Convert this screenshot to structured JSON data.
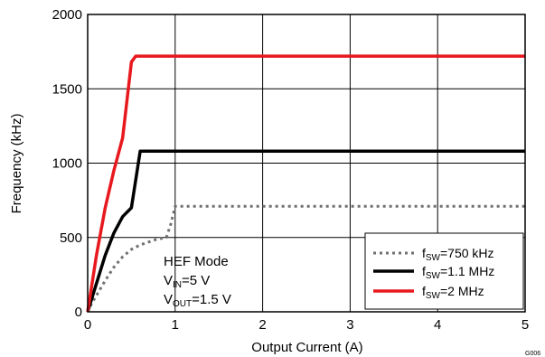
{
  "chart_data": {
    "type": "line",
    "xlabel": "Output Current (A)",
    "ylabel": "Frequency (kHz)",
    "xlim": [
      0,
      5
    ],
    "ylim": [
      0,
      2000
    ],
    "x_ticks": [
      "0",
      "1",
      "2",
      "3",
      "4",
      "5"
    ],
    "y_ticks": [
      "0",
      "500",
      "1000",
      "1500",
      "2000"
    ],
    "grid": true,
    "legend_position": "bottom-right",
    "annotation": {
      "line1": "HEF Mode",
      "line2_prefix": "V",
      "line2_sub": "IN",
      "line2_suffix": "=5 V",
      "line3_prefix": "V",
      "line3_sub": "OUT",
      "line3_suffix": "=1.5 V"
    },
    "corner_id": "G006",
    "series": [
      {
        "label_prefix": "f",
        "label_sub": "SW",
        "label_suffix": "=750 kHz",
        "color": "#707070",
        "style": "dotted",
        "x": [
          0,
          0.05,
          0.1,
          0.2,
          0.3,
          0.4,
          0.5,
          0.6,
          0.7,
          0.8,
          0.9,
          0.95,
          1.0,
          5.0
        ],
        "y": [
          0,
          60,
          110,
          210,
          300,
          370,
          420,
          450,
          470,
          490,
          500,
          590,
          710,
          710
        ]
      },
      {
        "label_prefix": "f",
        "label_sub": "SW",
        "label_suffix": "=1.1 MHz",
        "color": "#000000",
        "style": "solid",
        "x": [
          0,
          0.1,
          0.2,
          0.3,
          0.4,
          0.5,
          0.6,
          5.0
        ],
        "y": [
          0,
          190,
          380,
          530,
          640,
          700,
          1080,
          1080
        ]
      },
      {
        "label_prefix": "f",
        "label_sub": "SW",
        "label_suffix": "=2 MHz",
        "color": "#e8191e",
        "style": "solid",
        "x": [
          0,
          0.1,
          0.2,
          0.3,
          0.4,
          0.5,
          0.55,
          5.0
        ],
        "y": [
          0,
          380,
          700,
          950,
          1170,
          1680,
          1720,
          1720
        ]
      }
    ]
  }
}
